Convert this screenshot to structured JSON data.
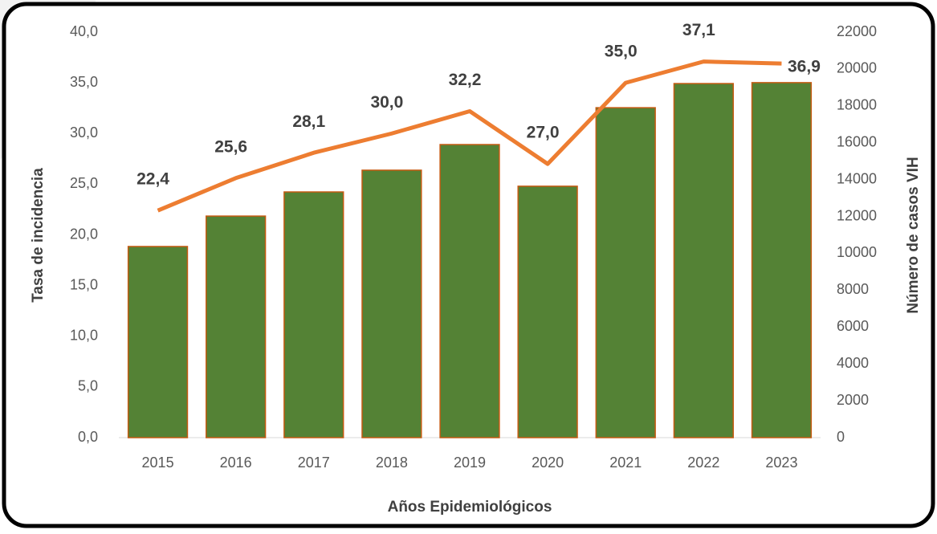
{
  "chart_data": {
    "type": "combo",
    "xlabel": "Años Epidemiológicos",
    "ylabel": "Tasa de incidencia",
    "y2label": "Número de casos VIH",
    "categories": [
      "2015",
      "2016",
      "2017",
      "2018",
      "2019",
      "2020",
      "2021",
      "2022",
      "2023"
    ],
    "series": [
      {
        "type": "bar",
        "axis": "y2",
        "color": "#548235",
        "edgecolor": "#c55a11",
        "values": [
          10370,
          12020,
          13330,
          14510,
          15900,
          13640,
          17900,
          19210,
          19260
        ]
      },
      {
        "type": "line",
        "color": "#ed7d31",
        "values": [
          22.4,
          25.6,
          28.1,
          30.0,
          32.2,
          27.0,
          35.0,
          37.1,
          36.9
        ],
        "value_labels": [
          "22,4",
          "25,6",
          "28,1",
          "30,0",
          "32,2",
          "27,0",
          "35,0",
          "37,1",
          "36,9"
        ]
      }
    ],
    "ylim": [
      0,
      40
    ],
    "yticks": [
      {
        "value": 0,
        "label": "0,0"
      },
      {
        "value": 5,
        "label": "5,0"
      },
      {
        "value": 10,
        "label": "10,0"
      },
      {
        "value": 15,
        "label": "15,0"
      },
      {
        "value": 20,
        "label": "20,0"
      },
      {
        "value": 25,
        "label": "25,0"
      },
      {
        "value": 30,
        "label": "30,0"
      },
      {
        "value": 35,
        "label": "35,0"
      },
      {
        "value": 40,
        "label": "40,0"
      }
    ],
    "y2lim": [
      0,
      22000
    ],
    "y2ticks": [
      0,
      2000,
      4000,
      6000,
      8000,
      10000,
      12000,
      14000,
      16000,
      18000,
      20000,
      22000
    ]
  }
}
